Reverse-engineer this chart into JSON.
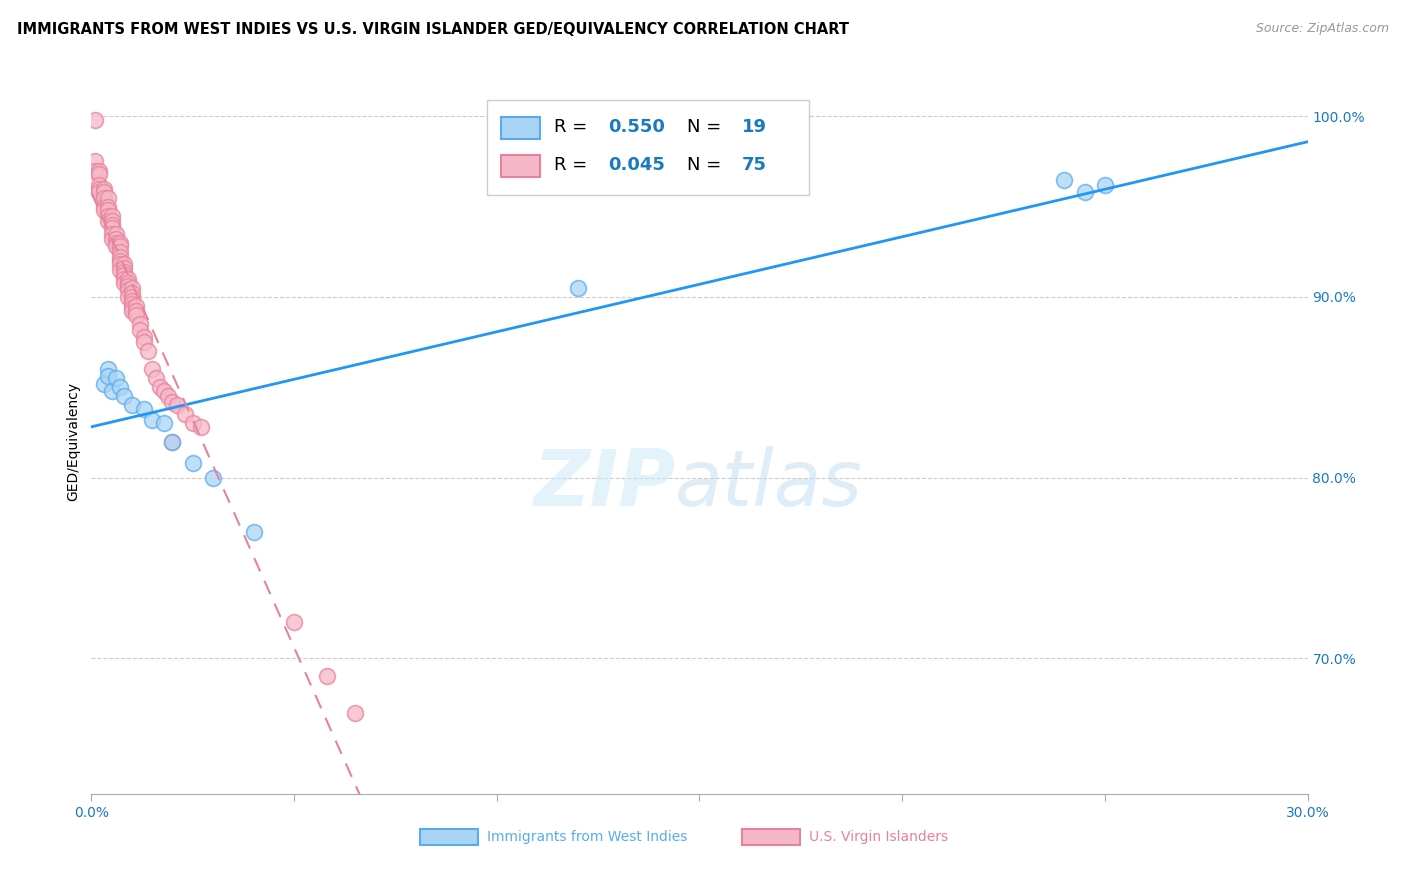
{
  "title": "IMMIGRANTS FROM WEST INDIES VS U.S. VIRGIN ISLANDER GED/EQUIVALENCY CORRELATION CHART",
  "source": "Source: ZipAtlas.com",
  "xlabel_bottom": [
    "Immigrants from West Indies",
    "U.S. Virgin Islanders"
  ],
  "ylabel": "GED/Equivalency",
  "xlim": [
    0.0,
    0.3
  ],
  "ylim": [
    0.625,
    1.015
  ],
  "xticks": [
    0.0,
    0.05,
    0.1,
    0.15,
    0.2,
    0.25,
    0.3
  ],
  "xticklabels": [
    "0.0%",
    "",
    "",
    "",
    "",
    "",
    "30.0%"
  ],
  "yticks_right": [
    1.0,
    0.9,
    0.8,
    0.7
  ],
  "yticklabels_right": [
    "100.0%",
    "90.0%",
    "80.0%",
    "70.0%"
  ],
  "blue_line_color": "#2196F3",
  "blue_dot_face": "#aad4f5",
  "blue_dot_edge": "#5aabec",
  "pink_line_color": "#e8829a",
  "pink_dot_face": "#f5b8c8",
  "pink_dot_edge": "#e8829a",
  "R_blue": 0.55,
  "N_blue": 19,
  "R_pink": 0.045,
  "N_pink": 75,
  "legend_R_color": "#1a7abf",
  "axis_color": "#1a7abf",
  "blue_x": [
    0.003,
    0.004,
    0.004,
    0.005,
    0.006,
    0.007,
    0.008,
    0.01,
    0.013,
    0.015,
    0.018,
    0.02,
    0.025,
    0.03,
    0.04,
    0.12,
    0.24,
    0.245,
    0.25
  ],
  "blue_y": [
    0.852,
    0.86,
    0.856,
    0.848,
    0.855,
    0.85,
    0.845,
    0.84,
    0.838,
    0.832,
    0.83,
    0.82,
    0.808,
    0.8,
    0.77,
    0.905,
    0.965,
    0.958,
    0.962
  ],
  "pink_x": [
    0.001,
    0.001,
    0.001,
    0.002,
    0.002,
    0.002,
    0.002,
    0.002,
    0.003,
    0.003,
    0.003,
    0.003,
    0.003,
    0.004,
    0.004,
    0.004,
    0.004,
    0.004,
    0.005,
    0.005,
    0.005,
    0.005,
    0.005,
    0.005,
    0.006,
    0.006,
    0.006,
    0.006,
    0.007,
    0.007,
    0.007,
    0.007,
    0.007,
    0.007,
    0.007,
    0.008,
    0.008,
    0.008,
    0.008,
    0.008,
    0.008,
    0.009,
    0.009,
    0.009,
    0.009,
    0.009,
    0.01,
    0.01,
    0.01,
    0.01,
    0.01,
    0.01,
    0.01,
    0.011,
    0.011,
    0.011,
    0.012,
    0.012,
    0.013,
    0.013,
    0.014,
    0.015,
    0.016,
    0.017,
    0.018,
    0.019,
    0.02,
    0.021,
    0.023,
    0.025,
    0.027,
    0.05,
    0.058,
    0.065,
    0.02
  ],
  "pink_y": [
    0.998,
    0.975,
    0.97,
    0.97,
    0.968,
    0.962,
    0.96,
    0.958,
    0.96,
    0.958,
    0.955,
    0.95,
    0.948,
    0.955,
    0.95,
    0.948,
    0.945,
    0.942,
    0.945,
    0.942,
    0.94,
    0.938,
    0.935,
    0.932,
    0.935,
    0.932,
    0.93,
    0.928,
    0.93,
    0.928,
    0.925,
    0.922,
    0.92,
    0.918,
    0.915,
    0.918,
    0.916,
    0.914,
    0.912,
    0.91,
    0.908,
    0.91,
    0.908,
    0.906,
    0.904,
    0.9,
    0.905,
    0.902,
    0.9,
    0.898,
    0.896,
    0.894,
    0.892,
    0.895,
    0.892,
    0.89,
    0.885,
    0.882,
    0.878,
    0.875,
    0.87,
    0.86,
    0.855,
    0.85,
    0.848,
    0.845,
    0.842,
    0.84,
    0.835,
    0.83,
    0.828,
    0.72,
    0.69,
    0.67,
    0.82
  ]
}
